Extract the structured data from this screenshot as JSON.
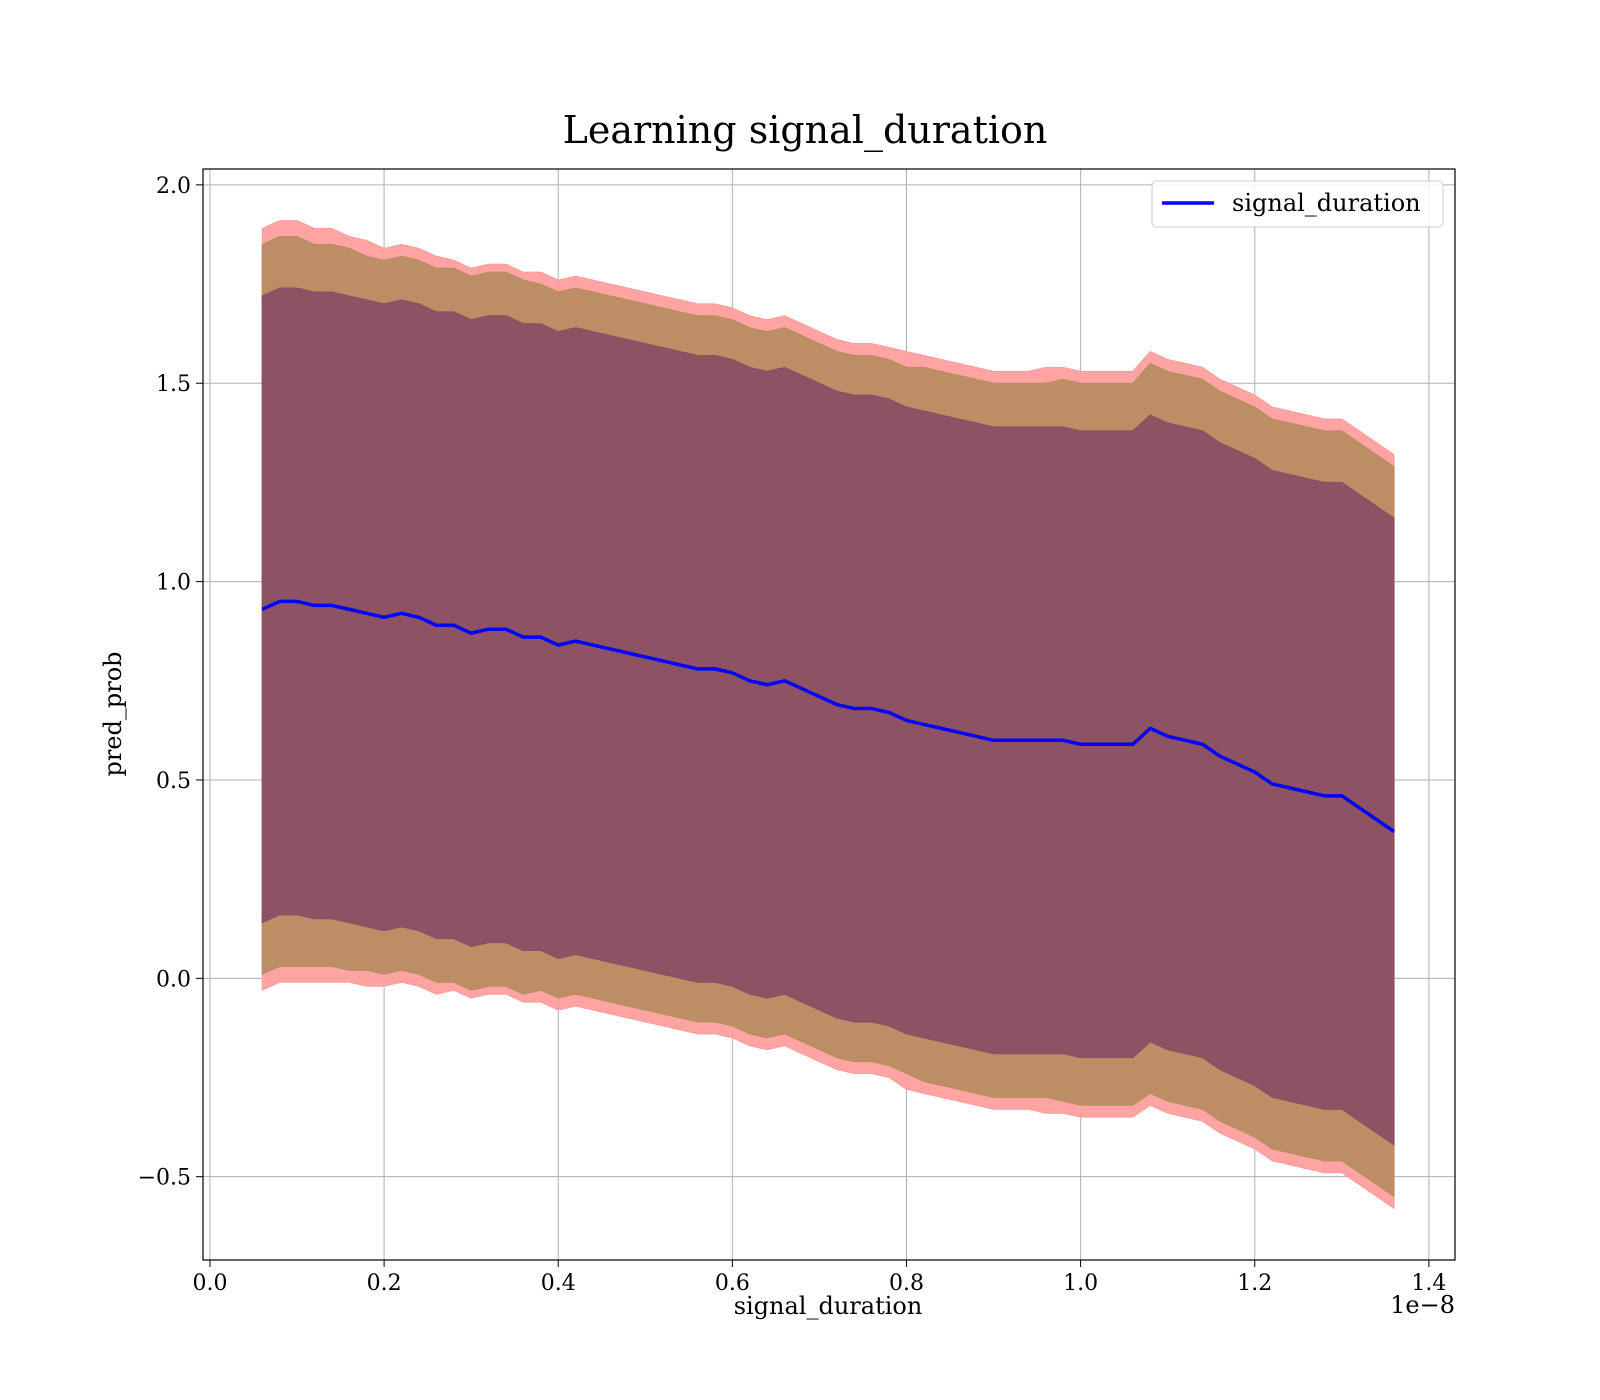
{
  "chart_data": {
    "type": "line",
    "title": "Learning signal_duration",
    "xlabel": "signal_duration",
    "ylabel": "pred_prob",
    "x_offset_label": "1e−8",
    "xlim": [
      -0.008,
      1.43
    ],
    "ylim": [
      -0.71,
      2.04
    ],
    "x_unit_multiplier": "1e-8",
    "xticks": [
      0.0,
      0.2,
      0.4,
      0.6,
      0.8,
      1.0,
      1.2,
      1.4
    ],
    "xtick_labels": [
      "0.0",
      "0.2",
      "0.4",
      "0.6",
      "0.8",
      "1.0",
      "1.2",
      "1.4"
    ],
    "yticks": [
      -0.5,
      0.0,
      0.5,
      1.0,
      1.5,
      2.0
    ],
    "ytick_labels": [
      "−0.5",
      "0.0",
      "0.5",
      "1.0",
      "1.5",
      "2.0"
    ],
    "grid": true,
    "legend_position": "upper right",
    "line_color": "#0000ff",
    "band_colors": {
      "outer": "#ff9e9e",
      "middle": "#b98d63",
      "inner": "#8a4f63"
    },
    "series": [
      {
        "name": "signal_duration",
        "x": [
          0.06,
          0.08,
          0.1,
          0.12,
          0.14,
          0.16,
          0.18,
          0.2,
          0.22,
          0.24,
          0.26,
          0.28,
          0.3,
          0.32,
          0.34,
          0.36,
          0.38,
          0.4,
          0.42,
          0.44,
          0.46,
          0.48,
          0.5,
          0.52,
          0.54,
          0.56,
          0.58,
          0.6,
          0.62,
          0.64,
          0.66,
          0.68,
          0.7,
          0.72,
          0.74,
          0.76,
          0.78,
          0.8,
          0.82,
          0.84,
          0.86,
          0.88,
          0.9,
          0.92,
          0.94,
          0.96,
          0.98,
          1.0,
          1.02,
          1.04,
          1.06,
          1.08,
          1.1,
          1.12,
          1.14,
          1.16,
          1.18,
          1.2,
          1.22,
          1.24,
          1.26,
          1.28,
          1.3,
          1.32,
          1.34,
          1.36
        ],
        "y": [
          0.93,
          0.95,
          0.95,
          0.94,
          0.94,
          0.93,
          0.92,
          0.91,
          0.92,
          0.91,
          0.89,
          0.89,
          0.87,
          0.88,
          0.88,
          0.86,
          0.86,
          0.84,
          0.85,
          0.84,
          0.83,
          0.82,
          0.81,
          0.8,
          0.79,
          0.78,
          0.78,
          0.77,
          0.75,
          0.74,
          0.75,
          0.73,
          0.71,
          0.69,
          0.68,
          0.68,
          0.67,
          0.65,
          0.64,
          0.63,
          0.62,
          0.61,
          0.6,
          0.6,
          0.6,
          0.6,
          0.6,
          0.59,
          0.59,
          0.59,
          0.59,
          0.63,
          0.61,
          0.6,
          0.59,
          0.56,
          0.54,
          0.52,
          0.49,
          0.48,
          0.47,
          0.46,
          0.46,
          0.43,
          0.4,
          0.37
        ],
        "bands": [
          {
            "level": "outer",
            "halfwidth": [
              0.96,
              0.96,
              0.96,
              0.95,
              0.95,
              0.94,
              0.94,
              0.93,
              0.93,
              0.93,
              0.93,
              0.92,
              0.92,
              0.92,
              0.92,
              0.92,
              0.92,
              0.92,
              0.92,
              0.92,
              0.92,
              0.92,
              0.92,
              0.92,
              0.92,
              0.92,
              0.92,
              0.92,
              0.92,
              0.92,
              0.92,
              0.92,
              0.92,
              0.92,
              0.92,
              0.92,
              0.92,
              0.93,
              0.93,
              0.93,
              0.93,
              0.93,
              0.93,
              0.93,
              0.93,
              0.94,
              0.94,
              0.94,
              0.94,
              0.94,
              0.94,
              0.95,
              0.95,
              0.95,
              0.95,
              0.95,
              0.95,
              0.95,
              0.95,
              0.95,
              0.95,
              0.95,
              0.95,
              0.95,
              0.95,
              0.95
            ]
          },
          {
            "level": "middle",
            "halfwidth": [
              0.92,
              0.92,
              0.92,
              0.91,
              0.91,
              0.91,
              0.9,
              0.9,
              0.9,
              0.9,
              0.9,
              0.9,
              0.9,
              0.9,
              0.9,
              0.9,
              0.89,
              0.89,
              0.89,
              0.89,
              0.89,
              0.89,
              0.89,
              0.89,
              0.89,
              0.89,
              0.89,
              0.89,
              0.89,
              0.89,
              0.89,
              0.89,
              0.89,
              0.89,
              0.89,
              0.89,
              0.89,
              0.89,
              0.9,
              0.9,
              0.9,
              0.9,
              0.9,
              0.9,
              0.9,
              0.9,
              0.91,
              0.91,
              0.91,
              0.91,
              0.91,
              0.92,
              0.92,
              0.92,
              0.92,
              0.92,
              0.92,
              0.92,
              0.92,
              0.92,
              0.92,
              0.92,
              0.92,
              0.92,
              0.92,
              0.92
            ]
          },
          {
            "level": "inner",
            "halfwidth": [
              0.79,
              0.79,
              0.79,
              0.79,
              0.79,
              0.79,
              0.79,
              0.79,
              0.79,
              0.79,
              0.79,
              0.79,
              0.79,
              0.79,
              0.79,
              0.79,
              0.79,
              0.79,
              0.79,
              0.79,
              0.79,
              0.79,
              0.79,
              0.79,
              0.79,
              0.79,
              0.79,
              0.79,
              0.79,
              0.79,
              0.79,
              0.79,
              0.79,
              0.79,
              0.79,
              0.79,
              0.79,
              0.79,
              0.79,
              0.79,
              0.79,
              0.79,
              0.79,
              0.79,
              0.79,
              0.79,
              0.79,
              0.79,
              0.79,
              0.79,
              0.79,
              0.79,
              0.79,
              0.79,
              0.79,
              0.79,
              0.79,
              0.79,
              0.79,
              0.79,
              0.79,
              0.79,
              0.79,
              0.79,
              0.79,
              0.79
            ]
          }
        ]
      }
    ]
  }
}
